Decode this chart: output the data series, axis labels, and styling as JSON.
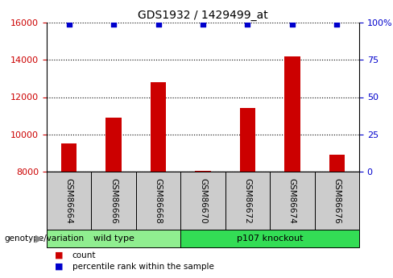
{
  "title": "GDS1932 / 1429499_at",
  "samples": [
    "GSM86664",
    "GSM86666",
    "GSM86668",
    "GSM86670",
    "GSM86672",
    "GSM86674",
    "GSM86676"
  ],
  "counts": [
    9500,
    10900,
    12800,
    8050,
    11400,
    14200,
    8900
  ],
  "percentiles": [
    99,
    99,
    99,
    99,
    99,
    99,
    99
  ],
  "ylim_left": [
    8000,
    16000
  ],
  "ylim_right": [
    0,
    100
  ],
  "yticks_left": [
    8000,
    10000,
    12000,
    14000,
    16000
  ],
  "yticks_right": [
    0,
    25,
    50,
    75,
    100
  ],
  "yticklabels_right": [
    "0",
    "25",
    "50",
    "75",
    "100%"
  ],
  "bar_color": "#cc0000",
  "dot_color": "#0000cc",
  "bar_width": 0.35,
  "groups": [
    {
      "label": "wild type",
      "indices": [
        0,
        1,
        2
      ],
      "color": "#90ee90"
    },
    {
      "label": "p107 knockout",
      "indices": [
        3,
        4,
        5,
        6
      ],
      "color": "#33dd55"
    }
  ],
  "group_label": "genotype/variation",
  "legend_count_label": "count",
  "legend_percentile_label": "percentile rank within the sample",
  "tick_label_color_left": "#cc0000",
  "tick_label_color_right": "#0000cc",
  "grid_style": "dotted",
  "grid_color": "#000000",
  "xlabel_box_color": "#cccccc",
  "figsize": [
    4.88,
    3.45
  ],
  "dpi": 100
}
